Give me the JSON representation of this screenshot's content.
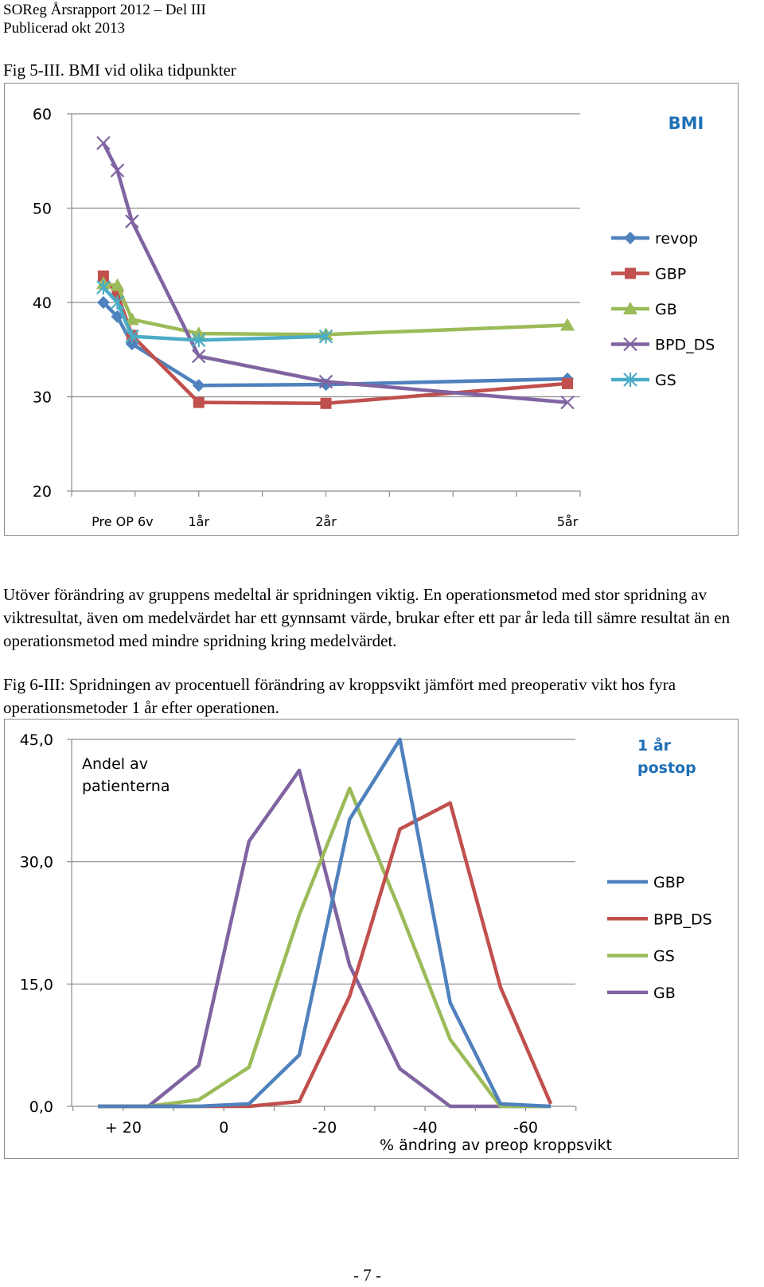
{
  "header": {
    "line1": "SOReg Årsrapport 2012 – Del III",
    "line2": "Publicerad okt 2013"
  },
  "fig5": {
    "caption": "Fig 5-III. BMI vid olika tidpunkter",
    "chart_data": {
      "type": "line",
      "title": "BMI",
      "x": [
        "Pre OP",
        "6v",
        "1år",
        "2år",
        "5år"
      ],
      "x_tick_labels": [
        "Pre OP 6v",
        "1år",
        "2år",
        "5år"
      ],
      "y_ticks": [
        "60",
        "50",
        "40",
        "30",
        "20"
      ],
      "ylim": [
        20,
        60
      ],
      "series": [
        {
          "name": "revop",
          "color": "#4f81bd",
          "marker": "diamond",
          "points": [
            [
              0,
              40.0
            ],
            [
              0.22,
              38.5
            ],
            [
              0.45,
              35.6
            ],
            [
              1.5,
              31.2
            ],
            [
              3.5,
              31.3
            ],
            [
              7.3,
              31.9
            ]
          ]
        },
        {
          "name": "GBP",
          "color": "#c0504d",
          "marker": "square",
          "points": [
            [
              0,
              42.8
            ],
            [
              0.22,
              40.9
            ],
            [
              0.45,
              36.5
            ],
            [
              1.5,
              29.4
            ],
            [
              3.5,
              29.3
            ],
            [
              7.3,
              31.4
            ]
          ]
        },
        {
          "name": "GB",
          "color": "#9bbb59",
          "marker": "triangle",
          "points": [
            [
              0,
              42.0
            ],
            [
              0.22,
              41.8
            ],
            [
              0.45,
              38.2
            ],
            [
              1.5,
              36.7
            ],
            [
              3.5,
              36.6
            ],
            [
              7.3,
              37.6
            ]
          ]
        },
        {
          "name": "BPD_DS",
          "color": "#8064a2",
          "marker": "x",
          "points": [
            [
              0,
              56.9
            ],
            [
              0.22,
              54.0
            ],
            [
              0.45,
              48.6
            ],
            [
              1.5,
              34.3
            ],
            [
              3.5,
              31.6
            ],
            [
              7.3,
              29.4
            ]
          ]
        },
        {
          "name": "GS",
          "color": "#4bacc6",
          "marker": "star",
          "points": [
            [
              0,
              41.6
            ],
            [
              0.22,
              40.0
            ],
            [
              0.45,
              36.4
            ],
            [
              1.5,
              36.0
            ],
            [
              3.5,
              36.4
            ]
          ]
        }
      ]
    }
  },
  "paragraph": "Utöver förändring av gruppens medeltal är spridningen viktig. En operationsmetod med stor spridning av viktresultat, även om medelvärdet har ett gynnsamt värde, brukar efter ett par år leda till sämre resultat än en operationsmetod med mindre spridning kring medelvärdet.",
  "fig6": {
    "caption": "Fig 6-III: Spridningen av procentuell förändring av kroppsvikt jämfört med preoperativ vikt hos fyra operationsmetoder 1 år efter operationen.",
    "chart_data": {
      "type": "line",
      "title": "1 år postop",
      "title_lines": [
        "1 år",
        "postop"
      ],
      "ylabel_lines": [
        "Andel av",
        "patienterna"
      ],
      "xlabel": "% ändring av preop kroppsvikt",
      "x_tick_labels": [
        "+ 20",
        "0",
        "-20",
        "-40",
        "-60"
      ],
      "x_tick_values": [
        20,
        0,
        -20,
        -40,
        -60
      ],
      "y_ticks": [
        "45,0",
        "30,0",
        "15,0",
        "0,0"
      ],
      "ylim": [
        0,
        45
      ],
      "x": [
        25,
        15,
        5,
        -5,
        -15,
        -25,
        -35,
        -45,
        -55,
        -65
      ],
      "series": [
        {
          "name": "GBP",
          "color": "#4f81bd",
          "values": [
            0,
            0,
            0,
            0.3,
            6.3,
            35.2,
            45.0,
            12.7,
            0.3,
            0
          ]
        },
        {
          "name": "BPB_DS",
          "color": "#c0504d",
          "values": [
            0,
            0,
            0,
            0,
            0.6,
            13.5,
            34.0,
            37.2,
            14.6,
            0.3
          ]
        },
        {
          "name": "GS",
          "color": "#9bbb59",
          "values": [
            0,
            0,
            0.8,
            4.8,
            23.5,
            39.0,
            24.0,
            8.2,
            0,
            0
          ]
        },
        {
          "name": "GB",
          "color": "#8064a2",
          "values": [
            0,
            0,
            5.0,
            32.5,
            41.2,
            17.3,
            4.6,
            0,
            0,
            0
          ]
        }
      ]
    }
  },
  "page_number": "- 7 -"
}
